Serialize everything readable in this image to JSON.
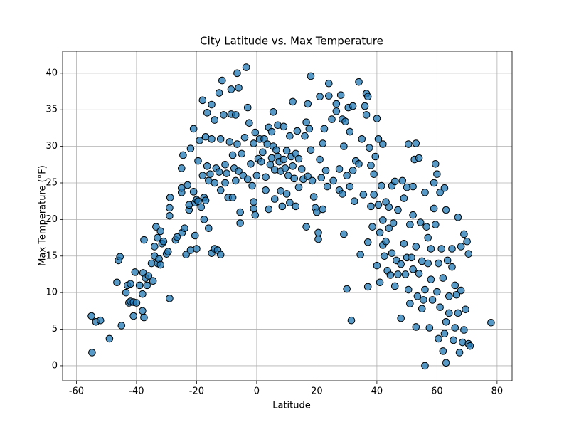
{
  "chart_data": {
    "type": "scatter",
    "title": "City Latitude vs. Max Temperature",
    "x_label": "Latitude",
    "y_label": "Max Temperature (°F)",
    "color": "#1f77b4",
    "edge_color": "#000000",
    "grid": true,
    "xlim": [
      -64.6,
      85.0
    ],
    "ylim": [
      -2.05,
      43.0
    ],
    "xticks": [
      -60,
      -40,
      -20,
      0,
      20,
      40,
      60,
      80
    ],
    "yticks": [
      0,
      5,
      10,
      15,
      20,
      25,
      30,
      35,
      40
    ],
    "x": [
      -55,
      -54.8,
      -53.5,
      -52,
      -49,
      -46.5,
      -46,
      -45.5,
      -45,
      -43.5,
      -43,
      -42.5,
      -42,
      -42,
      -41,
      -41,
      -40.5,
      -40,
      -39,
      -38,
      -38,
      -37.8,
      -37.5,
      -37.5,
      -37,
      -36.5,
      -36,
      -35,
      -34.5,
      -34,
      -34,
      -33.5,
      -33,
      -33,
      -32.5,
      -32,
      -32,
      -31.5,
      -31,
      -30,
      -29.5,
      -29,
      -29,
      -29,
      -28.8,
      -27,
      -26.5,
      -25,
      -25,
      -25,
      -24.8,
      -24.5,
      -24,
      -23.5,
      -23,
      -22.5,
      -22.5,
      -22,
      -22,
      -21,
      -21,
      -20.5,
      -20.5,
      -20,
      -20,
      -19.5,
      -19.5,
      -19,
      -18.5,
      -18,
      -18,
      -17.5,
      -17.5,
      -17,
      -17,
      -16.5,
      -16.5,
      -16,
      -16,
      -15.5,
      -15,
      -15,
      -15,
      -14,
      -14,
      -14,
      -13.5,
      -13,
      -12.5,
      -12.5,
      -12,
      -12,
      -12,
      -11.5,
      -11,
      -10.5,
      -10.5,
      -10,
      -9.5,
      -9,
      -8.5,
      -8.5,
      -8,
      -8,
      -7.5,
      -7,
      -7,
      -6.5,
      -6.5,
      -6,
      -6,
      -5.5,
      -5.5,
      -5,
      -4.5,
      -4,
      -3.5,
      -3,
      -3,
      -2.5,
      -2,
      -1.5,
      -1,
      -1,
      -1,
      -0.5,
      -0.5,
      0,
      0.5,
      1,
      1.5,
      2,
      2.5,
      3,
      3,
      3.5,
      4,
      4,
      4.5,
      5,
      5,
      5.5,
      5.5,
      6,
      6,
      6.5,
      7,
      7,
      7.5,
      8,
      8,
      8.5,
      9,
      9,
      9.5,
      10,
      10,
      10.5,
      11,
      11,
      11.5,
      12,
      12,
      12.5,
      13,
      13,
      13.5,
      14,
      14,
      15,
      15.5,
      16,
      16.5,
      16.5,
      17,
      17,
      17.5,
      18,
      18,
      18.5,
      19,
      19.5,
      20,
      20.5,
      20.5,
      21,
      21,
      21.5,
      22,
      22,
      22.5,
      23,
      23.5,
      24,
      24,
      25,
      25.5,
      26.5,
      26.5,
      27.5,
      27.5,
      28,
      28.5,
      28.5,
      29,
      29,
      29.5,
      30,
      30,
      30.5,
      31,
      31,
      31.5,
      32,
      32,
      32.5,
      33,
      34,
      34,
      34.5,
      35,
      35.5,
      36,
      36.5,
      36.5,
      37,
      37,
      37,
      37.5,
      38,
      38,
      38.5,
      39,
      39,
      39.5,
      40,
      40,
      40.5,
      40.5,
      41,
      41,
      41.5,
      42,
      42,
      42,
      42.5,
      43,
      43,
      43.5,
      44,
      44,
      44.5,
      45,
      45,
      45.5,
      46,
      46,
      46.5,
      47,
      47,
      48,
      48,
      48.5,
      49,
      49,
      49.5,
      50,
      50,
      50.5,
      50.5,
      51,
      51,
      51.5,
      52,
      52,
      52,
      52.5,
      53,
      53,
      53,
      53.5,
      54,
      54,
      54.5,
      55,
      55,
      55.5,
      56,
      56,
      56,
      56.5,
      57,
      57,
      57.5,
      58,
      58,
      58.5,
      59,
      59,
      59.5,
      59.5,
      60,
      60,
      60.5,
      60.5,
      61,
      61,
      61.5,
      62,
      62,
      62.5,
      62.5,
      63,
      63,
      63,
      63.5,
      64,
      64,
      65,
      65,
      65.5,
      66,
      66,
      66.5,
      67,
      67,
      67.5,
      68,
      68,
      68.5,
      69,
      69,
      69.5,
      70,
      70.5,
      70.5,
      71,
      78
    ],
    "values": [
      6.8,
      1.8,
      6,
      6.2,
      3.7,
      11.4,
      14.4,
      14.9,
      5.5,
      10,
      11,
      8.6,
      11.2,
      8.8,
      8.7,
      6.8,
      12.8,
      8.6,
      11,
      9.8,
      7.5,
      12.7,
      6.6,
      17.2,
      12,
      11,
      12.3,
      14,
      11.6,
      15,
      16.3,
      19,
      14,
      17.5,
      14.6,
      18.4,
      13.8,
      16.7,
      17,
      15.3,
      15.6,
      9.2,
      20.5,
      21.6,
      23,
      17.2,
      17.6,
      27,
      23.7,
      24.3,
      18.2,
      28.8,
      18.8,
      15.2,
      24.7,
      21.3,
      22,
      29.7,
      15.8,
      32.4,
      23.8,
      22.3,
      17.8,
      16,
      22.7,
      28,
      22.5,
      30.8,
      21.7,
      36.3,
      26,
      23,
      20,
      31.3,
      22.6,
      27.3,
      34.6,
      25.3,
      18.8,
      26.2,
      35.7,
      31,
      15.4,
      33.6,
      25,
      16,
      27,
      15.8,
      37.3,
      26.5,
      31,
      24,
      15.2,
      39,
      34.3,
      27.5,
      25,
      26.3,
      23,
      30.6,
      37.8,
      34.4,
      28.8,
      23,
      27,
      34.3,
      25.3,
      40,
      30.3,
      38,
      26.6,
      21,
      19.5,
      29,
      26,
      31.2,
      40.8,
      35.3,
      25.5,
      33.2,
      27.6,
      24.6,
      30.4,
      22.4,
      21.5,
      20.6,
      31.9,
      26,
      28.3,
      31,
      27.9,
      29.2,
      31,
      24,
      25.8,
      30.3,
      32.6,
      21.4,
      27.5,
      32,
      28.4,
      30,
      34.7,
      26.8,
      22.8,
      29.5,
      32.9,
      28.6,
      27.9,
      26.6,
      23.9,
      21.8,
      32.7,
      28.2,
      27,
      23.5,
      29.4,
      26,
      31.4,
      22.3,
      28.6,
      36.1,
      27.3,
      25.6,
      29,
      21.8,
      32.1,
      24.4,
      28.3,
      26.9,
      25.5,
      31.4,
      33.3,
      19,
      35.8,
      25.9,
      32.4,
      39.6,
      29.5,
      25.3,
      23.1,
      21.6,
      21,
      17.3,
      18.2,
      36.8,
      28.2,
      25.7,
      30.4,
      21.4,
      32.4,
      26.7,
      24.5,
      36.9,
      38.6,
      33.7,
      25.3,
      35.8,
      34.8,
      26.9,
      24,
      37,
      33.7,
      23.5,
      30,
      18,
      33.4,
      10.5,
      26,
      35.3,
      32,
      24.5,
      6.2,
      35.5,
      26.7,
      22.5,
      28,
      38.8,
      27.6,
      15.2,
      31,
      23.4,
      35.5,
      37.2,
      34.3,
      36.8,
      10.8,
      16.9,
      29.8,
      27.4,
      21.8,
      19,
      26.2,
      23.4,
      28.6,
      33.8,
      13.7,
      31,
      22,
      18.2,
      11.4,
      24.6,
      19.9,
      30.3,
      16.5,
      15,
      17,
      22.4,
      13,
      21.7,
      18.8,
      12.4,
      15.4,
      24.6,
      19.5,
      25.2,
      10.9,
      14.4,
      21.3,
      12.5,
      13.9,
      6.5,
      25.3,
      22.9,
      16.7,
      12.5,
      14.8,
      24.4,
      10.4,
      30.3,
      19.3,
      8.5,
      14.8,
      24.5,
      20.6,
      13.2,
      28.2,
      30.4,
      5.3,
      16.3,
      9.5,
      28.4,
      12.6,
      19.6,
      14.3,
      7.8,
      9,
      23.7,
      10.4,
      0,
      19,
      17.5,
      14,
      5.2,
      16,
      11.8,
      9,
      21.5,
      25,
      27.6,
      19.3,
      26.2,
      10.1,
      3.7,
      14,
      23.7,
      8,
      16,
      12,
      2,
      24.3,
      4.4,
      21.3,
      6,
      0.4,
      14.4,
      9.5,
      7.2,
      16,
      13.5,
      3.5,
      11,
      5.2,
      9.7,
      20.3,
      7.2,
      1.8,
      10.3,
      16.3,
      3.2,
      18,
      4.9,
      7.7,
      17,
      15.3,
      3,
      2.7,
      5.9
    ]
  }
}
